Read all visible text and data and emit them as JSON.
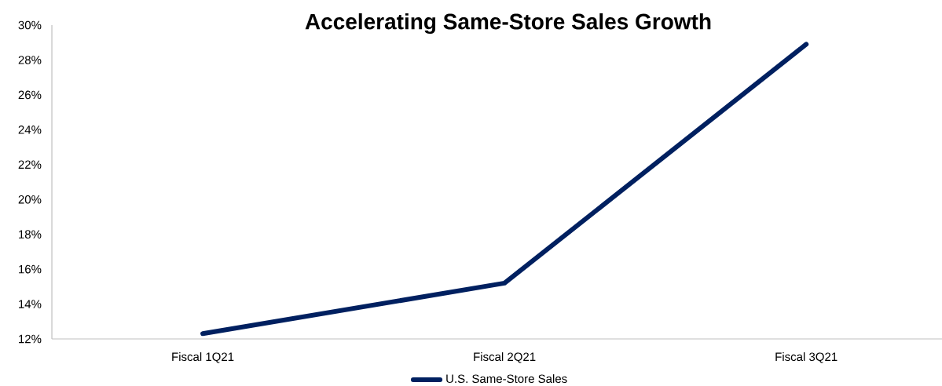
{
  "chart_data": {
    "type": "line",
    "title": "Accelerating Same-Store Sales Growth",
    "categories": [
      "Fiscal 1Q21",
      "Fiscal 2Q21",
      "Fiscal 3Q21"
    ],
    "series": [
      {
        "name": "U.S. Same-Store Sales",
        "color": "#002060",
        "values": [
          12.3,
          15.2,
          28.9
        ]
      }
    ],
    "ylim": [
      12,
      30
    ],
    "yticks": [
      {
        "value": 12,
        "label": "12%"
      },
      {
        "value": 14,
        "label": "14%"
      },
      {
        "value": 16,
        "label": "16%"
      },
      {
        "value": 18,
        "label": "18%"
      },
      {
        "value": 20,
        "label": "20%"
      },
      {
        "value": 22,
        "label": "22%"
      },
      {
        "value": 24,
        "label": "24%"
      },
      {
        "value": 26,
        "label": "26%"
      },
      {
        "value": 28,
        "label": "28%"
      },
      {
        "value": 30,
        "label": "30%"
      }
    ],
    "legend": "bottom"
  }
}
